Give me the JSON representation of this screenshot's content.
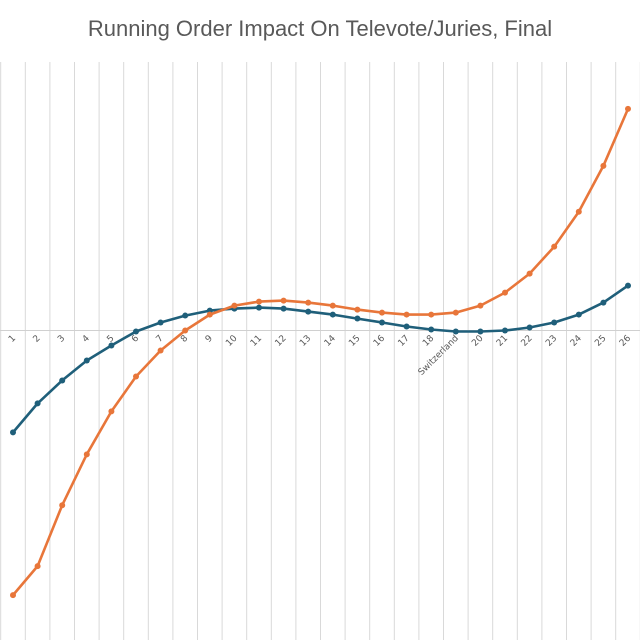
{
  "chart_data": {
    "type": "line",
    "title": "Running Order Impact On Televote/Juries, Final",
    "categories": [
      "1",
      "2",
      "3",
      "4",
      "5",
      "6",
      "7",
      "8",
      "9",
      "10",
      "11",
      "12",
      "13",
      "14",
      "15",
      "16",
      "17",
      "18",
      "Switzerland",
      "20",
      "21",
      "22",
      "23",
      "24",
      "25",
      "26"
    ],
    "series": [
      {
        "color": "#1f5f7a",
        "values": [
          -10.2,
          -7.3,
          -5.0,
          -3.0,
          -1.5,
          -0.1,
          0.8,
          1.5,
          2.0,
          2.2,
          2.3,
          2.2,
          1.9,
          1.6,
          1.2,
          0.8,
          0.4,
          0.1,
          -0.1,
          -0.1,
          0.0,
          0.3,
          0.8,
          1.6,
          2.8,
          4.5
        ]
      },
      {
        "color": "#e8763a",
        "values": [
          -26.5,
          -23.6,
          -17.5,
          -12.4,
          -8.1,
          -4.6,
          -2.0,
          0.0,
          1.6,
          2.5,
          2.9,
          3.0,
          2.8,
          2.5,
          2.1,
          1.8,
          1.6,
          1.6,
          1.8,
          2.5,
          3.8,
          5.7,
          8.4,
          11.9,
          16.5,
          22.2
        ]
      }
    ],
    "ylim": [
      -31.0,
      26.9
    ],
    "grid": "vertical",
    "legend": "none"
  }
}
